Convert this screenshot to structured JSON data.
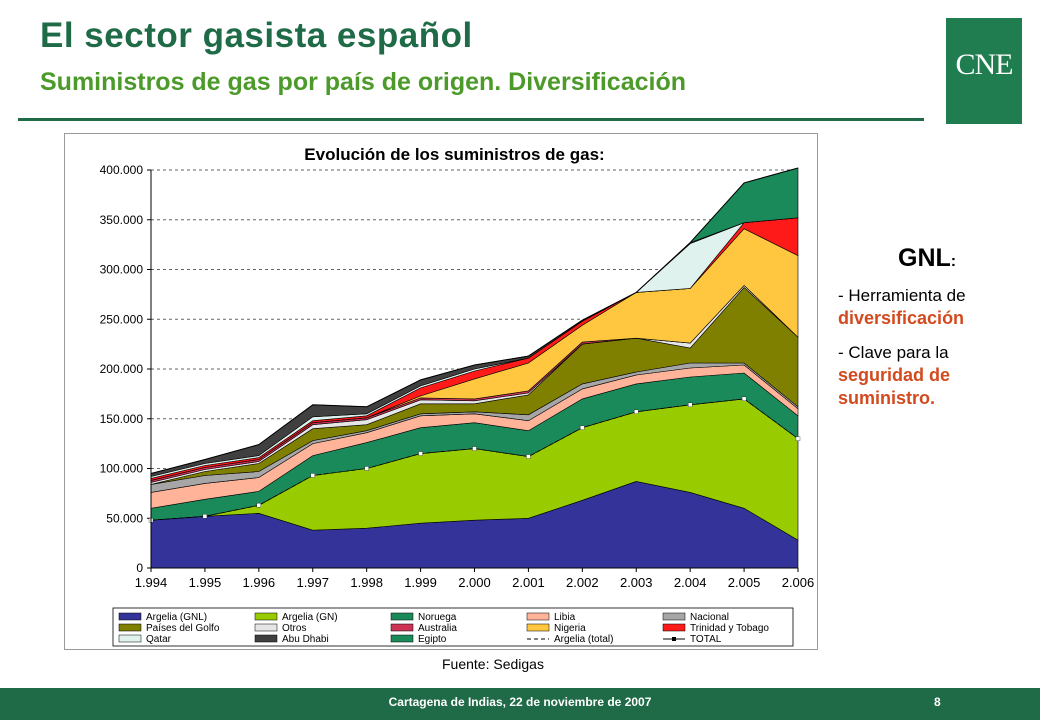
{
  "slide": {
    "title": "El sector gasista español",
    "subtitle": "Suministros de gas por país de origen. Diversificación",
    "logo_text": "CNE",
    "source": "Fuente: Sedigas",
    "footer": "Cartagena de Indias, 22 de noviembre de 2007",
    "page_number": "8"
  },
  "side_panel": {
    "heading": "GNL",
    "heading_suffix": ":",
    "bullet1_prefix": "- Herramienta de",
    "bullet1_highlight": "diversificación",
    "bullet2_prefix": "- Clave para la",
    "bullet2_highlight": "seguridad de suministro."
  },
  "colors": {
    "brand_green": "#1f6a47",
    "accent_orange": "#d24a1e"
  },
  "chart_data": {
    "type": "area",
    "stacked": true,
    "title": "Evolución de los suministros de gas:",
    "x": [
      "1.994",
      "1.995",
      "1.996",
      "1.997",
      "1.998",
      "1.999",
      "2.000",
      "2.001",
      "2.002",
      "2.003",
      "2.004",
      "2.005",
      "2.006"
    ],
    "yticks": [
      "0",
      "50.000",
      "100.000",
      "150.000",
      "200.000",
      "250.000",
      "300.000",
      "350.000",
      "400.000"
    ],
    "ylim": [
      0,
      400000
    ],
    "grid": true,
    "legend_position": "bottom",
    "series": [
      {
        "name": "Argelia (GNL)",
        "color": "#333399",
        "values": [
          48000,
          52000,
          55000,
          38000,
          40000,
          45000,
          48000,
          50000,
          68000,
          87000,
          76000,
          60000,
          28000
        ]
      },
      {
        "name": "Argelia (GN)",
        "color": "#99cc00",
        "values": [
          0,
          0,
          8000,
          55000,
          60000,
          70000,
          72000,
          62000,
          73000,
          70000,
          88000,
          110000,
          102000
        ]
      },
      {
        "name": "Noruega",
        "color": "#1a8a5a",
        "values": [
          12000,
          17000,
          14000,
          20000,
          26000,
          26000,
          26000,
          26000,
          29000,
          28000,
          28000,
          26000,
          23000
        ]
      },
      {
        "name": "Libia",
        "color": "#ffb399",
        "values": [
          16000,
          16000,
          14000,
          12000,
          10000,
          12000,
          9000,
          10000,
          10000,
          9000,
          9000,
          8000,
          7000
        ]
      },
      {
        "name": "Nacional",
        "color": "#a6a6a6",
        "values": [
          8000,
          8000,
          6000,
          3000,
          2000,
          2000,
          2000,
          6000,
          5000,
          3000,
          5000,
          2000,
          2000
        ]
      },
      {
        "name": "Países del Golfo",
        "color": "#808000",
        "values": [
          0,
          4000,
          8000,
          12000,
          6000,
          10000,
          8000,
          20000,
          40000,
          34000,
          15000,
          76000,
          70000
        ]
      },
      {
        "name": "Otros",
        "color": "#e6e6e6",
        "values": [
          2000,
          2000,
          2000,
          4000,
          5000,
          4000,
          3000,
          2000,
          0,
          0,
          5000,
          2000,
          0
        ]
      },
      {
        "name": "Australia",
        "color": "#cc3355",
        "values": [
          2000,
          2000,
          2000,
          2000,
          2000,
          2000,
          2000,
          2000,
          2000,
          0,
          0,
          0,
          0
        ]
      },
      {
        "name": "Nigeria",
        "color": "#ffc740",
        "values": [
          0,
          0,
          0,
          0,
          0,
          2000,
          20000,
          28000,
          17000,
          46000,
          55000,
          57000,
          82000
        ]
      },
      {
        "name": "Trinidad y Tobago",
        "color": "#ff1a1a",
        "values": [
          2000,
          2000,
          2000,
          2000,
          2000,
          8000,
          8000,
          5000,
          4000,
          0,
          0,
          6000,
          38000
        ]
      },
      {
        "name": "Qatar",
        "color": "#dff2ee",
        "values": [
          2000,
          2000,
          2000,
          4000,
          2000,
          2000,
          2000,
          0,
          0,
          0,
          45000,
          0,
          0
        ]
      },
      {
        "name": "Abu Dhabi",
        "color": "#404040",
        "values": [
          3000,
          4000,
          11000,
          12000,
          7000,
          6000,
          4000,
          2000,
          1000,
          0,
          1000,
          0,
          0
        ]
      },
      {
        "name": "Egipto",
        "color": "#1a8a5a",
        "values": [
          0,
          0,
          0,
          0,
          0,
          0,
          0,
          0,
          0,
          0,
          0,
          40000,
          50000
        ]
      }
    ],
    "lines": [
      {
        "name": "Argelia (total)",
        "style": "dashed",
        "color": "#000000",
        "values": [
          48000,
          52000,
          63000,
          93000,
          100000,
          115000,
          120000,
          112000,
          141000,
          157000,
          164000,
          170000,
          130000
        ]
      },
      {
        "name": "TOTAL",
        "style": "solid-marker",
        "color": "#000000",
        "values": [
          95000,
          109000,
          124000,
          164000,
          162000,
          189000,
          204000,
          213000,
          249000,
          277000,
          327000,
          387000,
          402000
        ]
      }
    ]
  }
}
